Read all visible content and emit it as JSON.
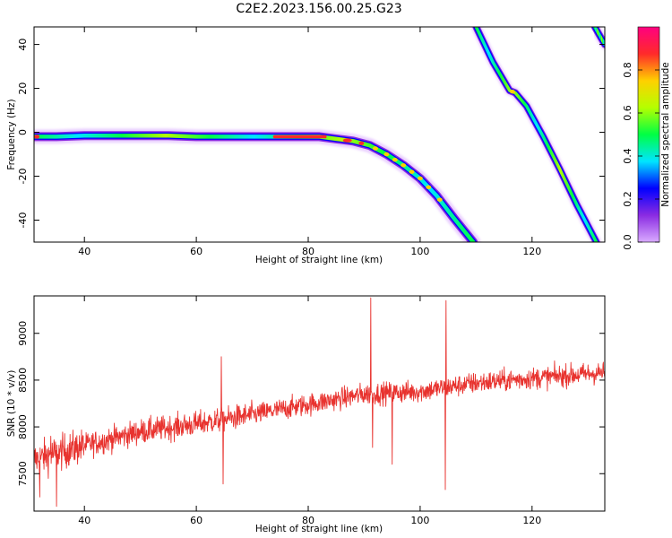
{
  "figure": {
    "title": "C2E2.2023.156.00.25.G23"
  },
  "chart_data": [
    {
      "type": "heatmap",
      "xlabel": "Height of straight line (km)",
      "ylabel": "Frequency (Hz)",
      "xlim": [
        31,
        133
      ],
      "ylim": [
        -50,
        48
      ],
      "x_ticks": [
        40,
        60,
        80,
        100,
        120
      ],
      "y_ticks": [
        40,
        20,
        0,
        -20,
        -40
      ],
      "grid": false,
      "colorbar": {
        "label": "Normalized spectral amplitude",
        "range": [
          0.0,
          1.0
        ],
        "ticks": [
          0.0,
          0.2,
          0.4,
          0.6,
          0.8
        ],
        "colormap": "gist_rainbow",
        "colors": [
          "#d9aaff",
          "#8a2be2",
          "#0000ff",
          "#00e5ff",
          "#00ff44",
          "#b5ff00",
          "#ffd000",
          "#ff2a2a",
          "#ff0080"
        ]
      },
      "traces": [
        {
          "x": [
            31,
            35,
            40,
            45,
            50,
            55,
            60,
            65,
            70,
            75,
            78,
            82,
            85,
            88,
            91,
            94,
            97,
            100,
            103,
            106,
            109.5
          ],
          "y": [
            -2,
            -2,
            -1.5,
            -1.5,
            -1.5,
            -1.5,
            -2,
            -2,
            -2,
            -2,
            -2,
            -2,
            -3,
            -4,
            -6,
            -10,
            -15,
            -21,
            -29,
            -39,
            -50
          ]
        },
        {
          "x": [
            110,
            113,
            116,
            117,
            119,
            122,
            125,
            128,
            131.5
          ],
          "y": [
            48,
            32,
            19,
            18,
            12,
            -2,
            -17,
            -33,
            -50
          ]
        },
        {
          "x": [
            131.2,
            133
          ],
          "y": [
            48,
            40
          ]
        }
      ]
    },
    {
      "type": "line",
      "xlabel": "Height of straight line (km)",
      "ylabel": "SNR (10 * v/v)",
      "xlim": [
        31,
        133
      ],
      "ylim": [
        7100,
        9400
      ],
      "x_ticks": [
        40,
        60,
        80,
        100,
        120
      ],
      "y_ticks": [
        9000,
        8500,
        8000,
        7500
      ],
      "grid": false,
      "color": "#e8332f",
      "trend": {
        "x": [
          31,
          40,
          50,
          60,
          70,
          80,
          90,
          100,
          110,
          120,
          133
        ],
        "y": [
          7650,
          7800,
          7950,
          8030,
          8130,
          8240,
          8350,
          8380,
          8470,
          8520,
          8580
        ]
      },
      "spikes": [
        {
          "x": 32,
          "y": 7250
        },
        {
          "x": 34,
          "y": 7900
        },
        {
          "x": 35,
          "y": 7150
        },
        {
          "x": 64.5,
          "y": 8750
        },
        {
          "x": 64.8,
          "y": 7390
        },
        {
          "x": 91.2,
          "y": 9380
        },
        {
          "x": 91.5,
          "y": 7780
        },
        {
          "x": 95,
          "y": 7600
        },
        {
          "x": 104.6,
          "y": 9350
        },
        {
          "x": 104.5,
          "y": 7330
        }
      ]
    }
  ]
}
